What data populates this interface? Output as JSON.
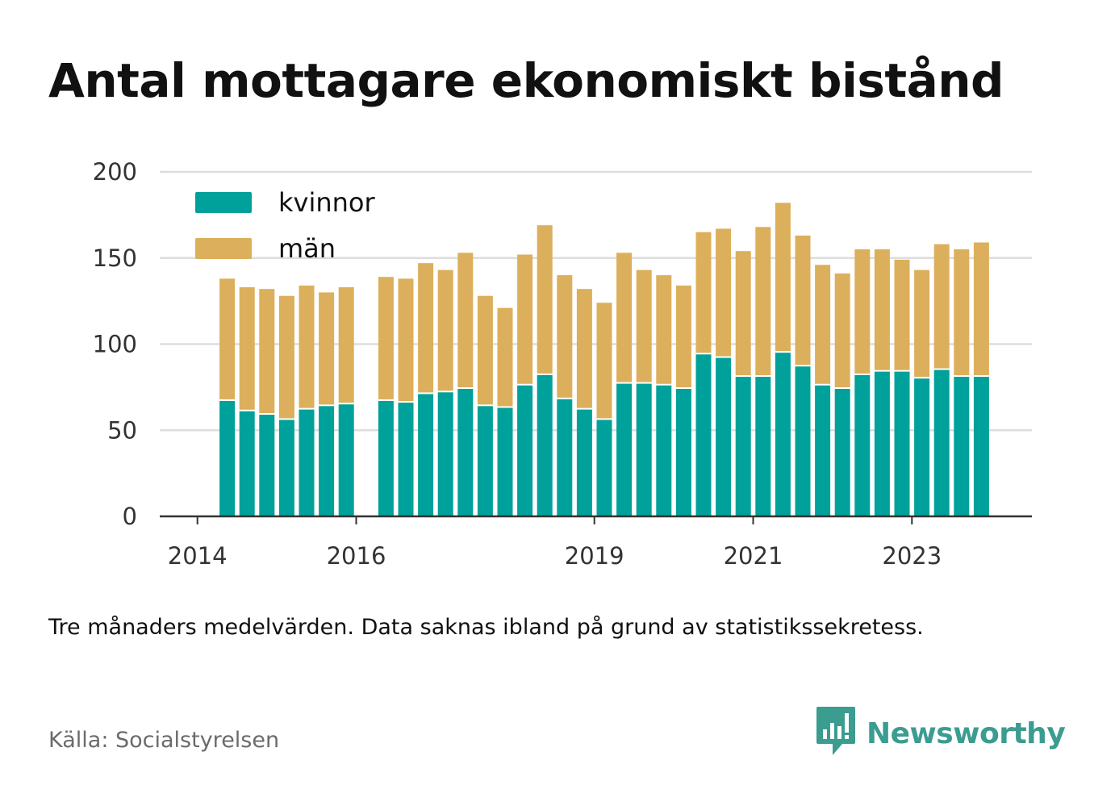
{
  "title": "Antal mottagare ekonomiskt bistånd",
  "note": "Tre månaders medelvärden. Data saknas ibland på grund av statistikssekretess.",
  "source": "Källa: Socialstyrelsen",
  "brand": {
    "name": "Newsworthy",
    "icon": "bar-chart-speech-bubble-icon",
    "color": "#3b9c90"
  },
  "chart_data": {
    "type": "bar",
    "stacked": true,
    "title": "Antal mottagare ekonomiskt bistånd",
    "xlabel": "",
    "ylabel": "",
    "ylim": [
      0,
      200
    ],
    "yticks": [
      0,
      50,
      100,
      150,
      200
    ],
    "grid": true,
    "legend_position": "top-left",
    "x_tick_labels": [
      {
        "label": "2014",
        "index": 0
      },
      {
        "label": "2016",
        "index": 8
      },
      {
        "label": "2019",
        "index": 20
      },
      {
        "label": "2021",
        "index": 28
      },
      {
        "label": "2023",
        "index": 36
      }
    ],
    "categories": [
      "2014-Q1",
      "2014-Q2",
      "2014-Q3",
      "2014-Q4",
      "2015-Q1",
      "2015-Q2",
      "2015-Q3",
      "2015-Q4",
      "2016-Q1",
      "2016-Q2",
      "2016-Q3",
      "2016-Q4",
      "2017-Q1",
      "2017-Q2",
      "2017-Q3",
      "2017-Q4",
      "2018-Q1",
      "2018-Q2",
      "2018-Q3",
      "2018-Q4",
      "2019-Q1",
      "2019-Q2",
      "2019-Q3",
      "2019-Q4",
      "2020-Q1",
      "2020-Q2",
      "2020-Q3",
      "2020-Q4",
      "2021-Q1",
      "2021-Q2",
      "2021-Q3",
      "2021-Q4",
      "2022-Q1",
      "2022-Q2",
      "2022-Q3",
      "2022-Q4",
      "2023-Q1",
      "2023-Q2",
      "2023-Q3",
      "2023-Q4"
    ],
    "series": [
      {
        "name": "kvinnor",
        "color": "#00a19a",
        "values": [
          null,
          67,
          61,
          59,
          56,
          62,
          64,
          65,
          null,
          67,
          66,
          71,
          72,
          74,
          64,
          63,
          76,
          82,
          68,
          62,
          56,
          77,
          77,
          76,
          74,
          94,
          92,
          81,
          81,
          95,
          87,
          76,
          74,
          82,
          84,
          84,
          80,
          85,
          81,
          81
        ]
      },
      {
        "name": "män",
        "color": "#dcaf5c",
        "values": [
          null,
          71,
          72,
          73,
          72,
          72,
          66,
          68,
          null,
          72,
          72,
          76,
          71,
          79,
          64,
          58,
          76,
          87,
          72,
          70,
          68,
          76,
          66,
          64,
          60,
          71,
          75,
          73,
          87,
          87,
          76,
          70,
          67,
          73,
          71,
          65,
          63,
          73,
          74,
          78
        ]
      }
    ]
  }
}
